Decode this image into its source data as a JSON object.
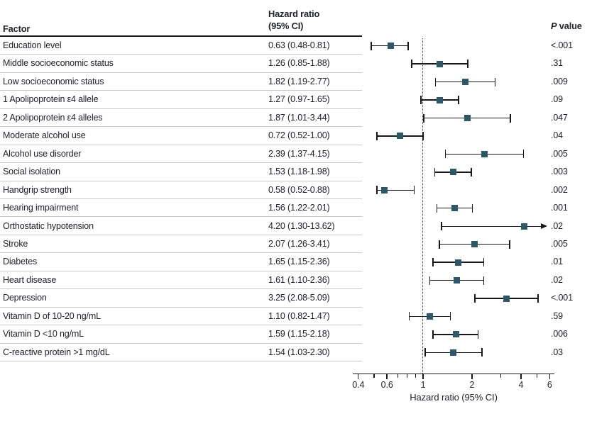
{
  "header": {
    "factor": "Factor",
    "hr_line1": "Hazard ratio",
    "hr_line2": "(95% CI)",
    "p_italic": "P",
    "p_rest": " value"
  },
  "colors": {
    "marker": "#2d5868",
    "whisker": "#17181c",
    "separator": "#c9c9c9",
    "reference_line": "#3a3c44"
  },
  "chart_data": {
    "type": "forest",
    "scale": "log",
    "xlabel": "Hazard ratio (95% CI)",
    "x_range": [
      0.4,
      6
    ],
    "ref_line": 1,
    "major_ticks": [
      0.4,
      0.6,
      1,
      2,
      4,
      6
    ],
    "major_tick_labels": [
      "0.4",
      "0.6",
      "1",
      "2",
      "4",
      "6"
    ],
    "minor_ticks": [
      0.5,
      0.7,
      0.8,
      0.9,
      3,
      5
    ],
    "rows": [
      {
        "factor": "Education level",
        "hr_text": "0.63 (0.48-0.81)",
        "hr": 0.63,
        "lo": 0.48,
        "hi": 0.81,
        "p": "<.001",
        "clipped": false
      },
      {
        "factor": "Middle socioeconomic status",
        "hr_text": "1.26 (0.85-1.88)",
        "hr": 1.26,
        "lo": 0.85,
        "hi": 1.88,
        "p": ".31",
        "clipped": false
      },
      {
        "factor": "Low socioeconomic status",
        "hr_text": "1.82 (1.19-2.77)",
        "hr": 1.82,
        "lo": 1.19,
        "hi": 2.77,
        "p": ".009",
        "clipped": false
      },
      {
        "factor": "1 Apolipoprotein ε4 allele",
        "hr_text": "1.27 (0.97-1.65)",
        "hr": 1.27,
        "lo": 0.97,
        "hi": 1.65,
        "p": ".09",
        "clipped": false
      },
      {
        "factor": "2 Apolipoprotein ε4 alleles",
        "hr_text": "1.87 (1.01-3.44)",
        "hr": 1.87,
        "lo": 1.01,
        "hi": 3.44,
        "p": ".047",
        "clipped": false
      },
      {
        "factor": "Moderate alcohol use",
        "hr_text": "0.72 (0.52-1.00)",
        "hr": 0.72,
        "lo": 0.52,
        "hi": 1.0,
        "p": ".04",
        "clipped": false
      },
      {
        "factor": "Alcohol use disorder",
        "hr_text": "2.39 (1.37-4.15)",
        "hr": 2.39,
        "lo": 1.37,
        "hi": 4.15,
        "p": ".005",
        "clipped": false
      },
      {
        "factor": "Social isolation",
        "hr_text": "1.53 (1.18-1.98)",
        "hr": 1.53,
        "lo": 1.18,
        "hi": 1.98,
        "p": ".003",
        "clipped": false
      },
      {
        "factor": "Handgrip strength",
        "hr_text": "0.58 (0.52-0.88)",
        "hr": 0.58,
        "lo": 0.52,
        "hi": 0.88,
        "p": ".002",
        "clipped": false
      },
      {
        "factor": "Hearing impairment",
        "hr_text": "1.56 (1.22-2.01)",
        "hr": 1.56,
        "lo": 1.22,
        "hi": 2.01,
        "p": ".001",
        "clipped": false
      },
      {
        "factor": "Orthostatic hypotension",
        "hr_text": "4.20 (1.30-13.62)",
        "hr": 4.2,
        "lo": 1.3,
        "hi": 13.62,
        "p": ".02",
        "clipped": true
      },
      {
        "factor": "Stroke",
        "hr_text": "2.07 (1.26-3.41)",
        "hr": 2.07,
        "lo": 1.26,
        "hi": 3.41,
        "p": ".005",
        "clipped": false
      },
      {
        "factor": "Diabetes",
        "hr_text": "1.65 (1.15-2.36)",
        "hr": 1.65,
        "lo": 1.15,
        "hi": 2.36,
        "p": ".01",
        "clipped": false
      },
      {
        "factor": "Heart disease",
        "hr_text": "1.61 (1.10-2.36)",
        "hr": 1.61,
        "lo": 1.1,
        "hi": 2.36,
        "p": ".02",
        "clipped": false
      },
      {
        "factor": "Depression",
        "hr_text": "3.25 (2.08-5.09)",
        "hr": 3.25,
        "lo": 2.08,
        "hi": 5.09,
        "p": "<.001",
        "clipped": false
      },
      {
        "factor": "Vitamin D of 10-20 ng/mL",
        "hr_text": "1.10 (0.82-1.47)",
        "hr": 1.1,
        "lo": 0.82,
        "hi": 1.47,
        "p": ".59",
        "clipped": false
      },
      {
        "factor": "Vitamin D <10 ng/mL",
        "hr_text": "1.59 (1.15-2.18)",
        "hr": 1.59,
        "lo": 1.15,
        "hi": 2.18,
        "p": ".006",
        "clipped": false
      },
      {
        "factor": "C-reactive protein >1 mg/dL",
        "hr_text": "1.54 (1.03-2.30)",
        "hr": 1.54,
        "lo": 1.03,
        "hi": 2.3,
        "p": ".03",
        "clipped": false
      }
    ]
  }
}
